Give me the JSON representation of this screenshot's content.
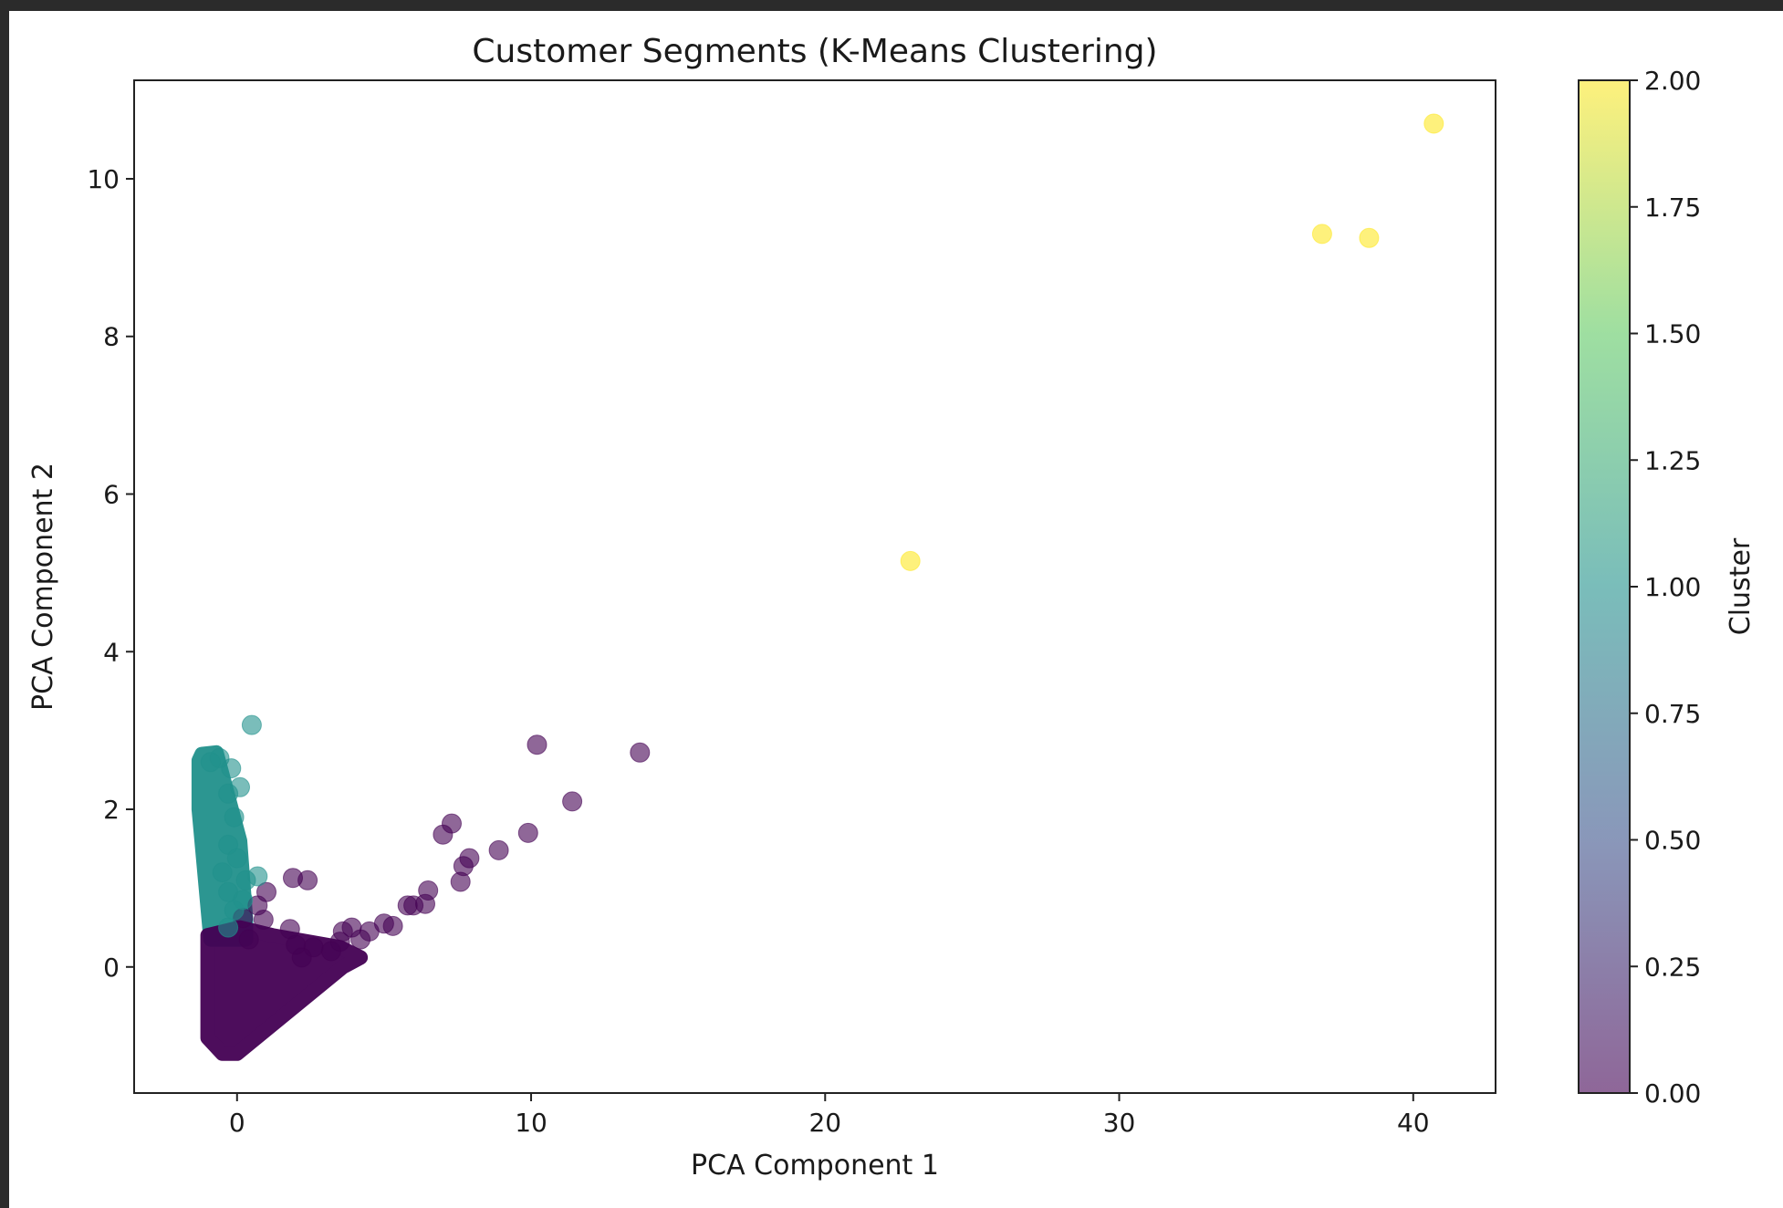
{
  "chart_data": {
    "type": "scatter",
    "title": "Customer Segments (K-Means Clustering)",
    "xlabel": "PCA Component 1",
    "ylabel": "PCA Component 2",
    "xlim": [
      -3.5,
      42.8
    ],
    "ylim": [
      -1.6,
      11.25
    ],
    "xticks": [
      0,
      10,
      20,
      30,
      40
    ],
    "yticks": [
      0,
      2,
      4,
      6,
      8,
      10
    ],
    "grid": false,
    "colormap": "viridis",
    "colorbar": {
      "label": "Cluster",
      "min": 0,
      "max": 2,
      "ticks": [
        "0.00",
        "0.25",
        "0.50",
        "0.75",
        "1.00",
        "1.25",
        "1.50",
        "1.75",
        "2.00"
      ],
      "colors": [
        "#440154",
        "#3b528b",
        "#21918c",
        "#5ec962",
        "#fde725"
      ]
    },
    "point_alpha": 0.6,
    "clusters": [
      {
        "cluster": 0,
        "color": "#440154",
        "points": [
          [
            10.2,
            2.82
          ],
          [
            13.7,
            2.72
          ],
          [
            11.4,
            2.1
          ],
          [
            9.9,
            1.7
          ],
          [
            8.9,
            1.48
          ],
          [
            7.3,
            1.82
          ],
          [
            7.0,
            1.68
          ],
          [
            7.9,
            1.38
          ],
          [
            7.7,
            1.28
          ],
          [
            7.6,
            1.08
          ],
          [
            6.5,
            0.97
          ],
          [
            6.4,
            0.8
          ],
          [
            6.0,
            0.78
          ],
          [
            5.8,
            0.78
          ],
          [
            5.3,
            0.52
          ],
          [
            5.0,
            0.55
          ],
          [
            4.5,
            0.45
          ],
          [
            4.2,
            0.35
          ],
          [
            3.9,
            0.5
          ],
          [
            3.6,
            0.45
          ],
          [
            1.9,
            1.13
          ],
          [
            2.4,
            1.1
          ],
          [
            1.0,
            0.95
          ],
          [
            0.9,
            0.6
          ],
          [
            1.8,
            0.48
          ],
          [
            2.0,
            0.28
          ],
          [
            2.6,
            0.25
          ],
          [
            2.2,
            0.12
          ],
          [
            3.2,
            0.2
          ],
          [
            3.5,
            0.32
          ],
          [
            0.4,
            0.35
          ],
          [
            0.2,
            0.62
          ],
          [
            0.7,
            0.78
          ]
        ]
      },
      {
        "cluster": 1,
        "color": "#21918c",
        "points": [
          [
            0.5,
            3.07
          ],
          [
            -0.2,
            2.52
          ],
          [
            -0.3,
            2.2
          ],
          [
            0.1,
            2.28
          ],
          [
            -0.1,
            1.9
          ],
          [
            -0.3,
            1.55
          ],
          [
            0.0,
            1.38
          ],
          [
            0.7,
            1.15
          ],
          [
            0.3,
            1.1
          ],
          [
            -0.5,
            1.2
          ],
          [
            -0.3,
            0.95
          ],
          [
            -0.1,
            0.72
          ],
          [
            -0.3,
            0.5
          ],
          [
            0.2,
            0.85
          ],
          [
            -0.6,
            2.65
          ],
          [
            -0.9,
            2.6
          ]
        ]
      },
      {
        "cluster": 2,
        "color": "#fde725",
        "points": [
          [
            40.7,
            10.7
          ],
          [
            36.9,
            9.3
          ],
          [
            38.5,
            9.25
          ],
          [
            22.9,
            5.15
          ]
        ]
      }
    ],
    "dense_regions": [
      {
        "cluster": 1,
        "color": "#21918c",
        "polygon": [
          [
            -1.3,
            2.62
          ],
          [
            -1.2,
            2.7
          ],
          [
            -0.7,
            2.72
          ],
          [
            0.1,
            1.6
          ],
          [
            0.3,
            0.6
          ],
          [
            0.3,
            0.35
          ],
          [
            -0.9,
            0.35
          ],
          [
            -1.3,
            2.0
          ]
        ]
      },
      {
        "cluster": 0,
        "color": "#440154",
        "polygon": [
          [
            -1.0,
            0.4
          ],
          [
            0.1,
            0.5
          ],
          [
            1.2,
            0.4
          ],
          [
            3.5,
            0.25
          ],
          [
            4.2,
            0.12
          ],
          [
            3.6,
            0.0
          ],
          [
            0.0,
            -1.1
          ],
          [
            -0.5,
            -1.1
          ],
          [
            -1.0,
            -0.9
          ]
        ]
      }
    ]
  }
}
